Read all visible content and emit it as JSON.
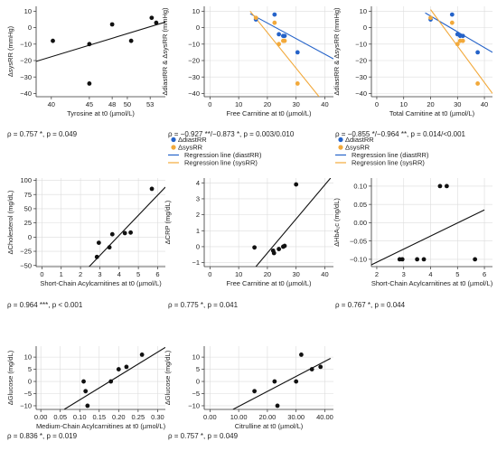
{
  "chart_data": [
    {
      "id": "p1",
      "type": "scatter",
      "xlabel": "Tyrosine at t0 (µmol/L)",
      "ylabel": "ΔsysRR (mmHg)",
      "xticks": [
        "40",
        "45",
        "48",
        "50",
        "53"
      ],
      "xtick_values": [
        40,
        45,
        48,
        50,
        53
      ],
      "yticks": [
        "10",
        "0",
        "−10",
        "−20",
        "−30",
        "−40"
      ],
      "ytick_values": [
        10,
        0,
        -10,
        -20,
        -30,
        -40
      ],
      "xlim": [
        38,
        55
      ],
      "ylim": [
        -42,
        13
      ],
      "xgrid": false,
      "ygrid": false,
      "series": [
        {
          "color": "#111111",
          "x": [
            40.2,
            45,
            45,
            48,
            50.5,
            53.2,
            53.8
          ],
          "y": [
            -8,
            -34,
            -10,
            2,
            -8,
            6,
            3
          ]
        }
      ],
      "lines": [
        {
          "color": "#111111",
          "x": [
            38,
            55
          ],
          "y": [
            -20.5,
            3.4
          ]
        }
      ],
      "legend": [],
      "caption": "ρ = 0.757 *, p = 0.049"
    },
    {
      "id": "p2",
      "type": "scatter",
      "xlabel": "Free Carnitine at t0 (µmol/L)",
      "ylabel": "ΔdiastRR & ΔsysRR (mmHg)",
      "xticks": [
        "0",
        "10",
        "20",
        "30",
        "40"
      ],
      "xtick_values": [
        0,
        10,
        20,
        30,
        40
      ],
      "yticks": [
        "10",
        "0",
        "−10",
        "−20",
        "−30",
        "−40"
      ],
      "ytick_values": [
        10,
        0,
        -10,
        -20,
        -30,
        -40
      ],
      "xlim": [
        -2,
        43
      ],
      "ylim": [
        -42,
        13
      ],
      "xgrid": true,
      "ygrid": true,
      "series": [
        {
          "name": "ΔdiastRR",
          "color": "#2563c9",
          "x": [
            16,
            22.5,
            24,
            25.5,
            26,
            30.5
          ],
          "y": [
            5,
            8,
            -4,
            -5,
            -5,
            -15
          ]
        },
        {
          "name": "ΔsysRR",
          "color": "#f2a93b",
          "x": [
            16,
            22.5,
            24,
            25.5,
            26,
            30.5
          ],
          "y": [
            6,
            3,
            -10,
            -8,
            -8,
            -34
          ]
        }
      ],
      "lines": [
        {
          "name": "Regression line (diastRR)",
          "color": "#2563c9",
          "x": [
            14,
            43
          ],
          "y": [
            8.5,
            -19
          ]
        },
        {
          "name": "Regression line (sysRR)",
          "color": "#f2a93b",
          "x": [
            14,
            38
          ],
          "y": [
            10,
            -42
          ]
        }
      ],
      "legend": [
        {
          "label": "ΔdiastRR",
          "color": "#2563c9",
          "kind": "marker"
        },
        {
          "label": "ΔsysRR",
          "color": "#f2a93b",
          "kind": "marker"
        },
        {
          "label": "Regression line (diastRR)",
          "color": "#2563c9",
          "kind": "line"
        },
        {
          "label": "Regression line (sysRR)",
          "color": "#f2a93b",
          "kind": "line"
        }
      ],
      "caption": "ρ = −0.927 **/−0.873 *, p = 0.003/0.010"
    },
    {
      "id": "p3",
      "type": "scatter",
      "xlabel": "Total Carnitine at t0 (µmol/L)",
      "ylabel": "ΔdiastRR & ΔsysRR (mmHg)",
      "xticks": [
        "0",
        "10",
        "20",
        "30",
        "40"
      ],
      "xtick_values": [
        0,
        10,
        20,
        30,
        40
      ],
      "yticks": [
        "10",
        "0",
        "−10",
        "−20",
        "−30",
        "−40"
      ],
      "ytick_values": [
        10,
        0,
        -10,
        -20,
        -30,
        -40
      ],
      "xlim": [
        -2,
        43
      ],
      "ylim": [
        -42,
        13
      ],
      "xgrid": true,
      "ygrid": true,
      "series": [
        {
          "name": "ΔdiastRR",
          "color": "#2563c9",
          "x": [
            20,
            28,
            30,
            31,
            32,
            37.5
          ],
          "y": [
            5,
            8,
            -4,
            -5,
            -5,
            -15
          ]
        },
        {
          "name": "ΔsysRR",
          "color": "#f2a93b",
          "x": [
            20,
            28,
            30,
            31,
            32,
            37.5
          ],
          "y": [
            6,
            3,
            -10,
            -8,
            -8,
            -34
          ]
        }
      ],
      "lines": [
        {
          "name": "Regression line (diastRR)",
          "color": "#2563c9",
          "x": [
            18,
            43
          ],
          "y": [
            9,
            -15
          ]
        },
        {
          "name": "Regression line (sysRR)",
          "color": "#f2a93b",
          "x": [
            20,
            43
          ],
          "y": [
            11,
            -40
          ]
        }
      ],
      "legend": [
        {
          "label": "ΔdiastRR",
          "color": "#2563c9",
          "kind": "marker"
        },
        {
          "label": "ΔsysRR",
          "color": "#f2a93b",
          "kind": "marker"
        },
        {
          "label": "Regression line (diastRR)",
          "color": "#2563c9",
          "kind": "line"
        },
        {
          "label": "Regression line (sysRR)",
          "color": "#f2a93b",
          "kind": "line"
        }
      ],
      "caption": "ρ = −0.855 */−0.964 **, p = 0.014/<0.001"
    },
    {
      "id": "p4",
      "type": "scatter",
      "xlabel": "Short-Chain Acylcarnitines at t0 (µmol/L)",
      "ylabel": "ΔCholesterol (mg/dL)",
      "xticks": [
        "0",
        "1",
        "2",
        "3",
        "4",
        "5",
        "6"
      ],
      "xtick_values": [
        0,
        1,
        2,
        3,
        4,
        5,
        6
      ],
      "yticks": [
        "100",
        "75",
        "50",
        "25",
        "0",
        "−25",
        "−50"
      ],
      "ytick_values": [
        100,
        75,
        50,
        25,
        0,
        -25,
        -50
      ],
      "xlim": [
        -0.3,
        6.4
      ],
      "ylim": [
        -52,
        104
      ],
      "xgrid": true,
      "ygrid": true,
      "series": [
        {
          "color": "#111111",
          "x": [
            2.85,
            2.95,
            3.5,
            3.65,
            4.3,
            4.6,
            5.7
          ],
          "y": [
            -35,
            -10,
            -18,
            5,
            7,
            8,
            85
          ]
        }
      ],
      "lines": [
        {
          "color": "#111111",
          "x": [
            2.45,
            6.4
          ],
          "y": [
            -52,
            88
          ]
        }
      ],
      "legend": [],
      "caption": "ρ = 0.964 ***, p < 0.001"
    },
    {
      "id": "p5",
      "type": "scatter",
      "xlabel": "Free Carnitine at t0 (µmol/L)",
      "ylabel": "ΔCRP (mg/dL)",
      "xticks": [
        "0",
        "10",
        "20",
        "30",
        "40"
      ],
      "xtick_values": [
        0,
        10,
        20,
        30,
        40
      ],
      "yticks": [
        "4",
        "3",
        "2",
        "1",
        "0",
        "−1"
      ],
      "ytick_values": [
        4,
        3,
        2,
        1,
        0,
        -1
      ],
      "xlim": [
        -2,
        43
      ],
      "ylim": [
        -1.25,
        4.3
      ],
      "xgrid": true,
      "ygrid": true,
      "series": [
        {
          "color": "#111111",
          "x": [
            15.5,
            22,
            22.3,
            24,
            25.5,
            26,
            30
          ],
          "y": [
            -0.05,
            -0.25,
            -0.4,
            -0.15,
            0,
            0.05,
            3.9
          ]
        }
      ],
      "lines": [
        {
          "color": "#111111",
          "x": [
            16,
            42
          ],
          "y": [
            -1.25,
            4.3
          ]
        }
      ],
      "legend": [],
      "caption": "ρ = 0.775 *, p = 0.041"
    },
    {
      "id": "p6",
      "type": "scatter",
      "xlabel": "Short-Chain Acylcarnitines at t0 (µmol/L)",
      "ylabel": "ΔHbA₁c (mg/dL)",
      "xticks": [
        "2",
        "3",
        "4",
        "5",
        "6"
      ],
      "xtick_values": [
        2,
        3,
        4,
        5,
        6
      ],
      "yticks": [
        "0.10",
        "0.05",
        "0.00",
        "−0.05",
        "−0.10"
      ],
      "ytick_values": [
        0.1,
        0.05,
        0,
        -0.05,
        -0.1
      ],
      "xlim": [
        1.8,
        6.3
      ],
      "ylim": [
        -0.12,
        0.122
      ],
      "xgrid": true,
      "ygrid": true,
      "series": [
        {
          "color": "#111111",
          "x": [
            2.85,
            2.95,
            3.5,
            3.75,
            4.35,
            4.6,
            5.65
          ],
          "y": [
            -0.1,
            -0.1,
            -0.1,
            -0.1,
            0.1,
            0.1,
            -0.1
          ]
        }
      ],
      "lines": [
        {
          "color": "#111111",
          "x": [
            1.8,
            6
          ],
          "y": [
            -0.115,
            0.035
          ]
        }
      ],
      "legend": [],
      "caption": "ρ = 0.767 *, p = 0.044"
    },
    {
      "id": "p7",
      "type": "scatter",
      "xlabel": "Medium-Chain Acylcarnitines at t0 (µmol/L)",
      "ylabel": "ΔGlucose (mg/dL)",
      "xticks": [
        "0.00",
        "0.05",
        "0.10",
        "0.15",
        "0.20",
        "0.25",
        "0.30"
      ],
      "xtick_values": [
        0,
        0.05,
        0.1,
        0.15,
        0.2,
        0.25,
        0.3
      ],
      "yticks": [
        "10",
        "5",
        "0",
        "−5",
        "−10"
      ],
      "ytick_values": [
        10,
        5,
        0,
        -5,
        -10
      ],
      "xlim": [
        -0.012,
        0.32
      ],
      "ylim": [
        -11.5,
        14.5
      ],
      "xgrid": true,
      "ygrid": true,
      "series": [
        {
          "color": "#111111",
          "x": [
            0.11,
            0.115,
            0.12,
            0.18,
            0.2,
            0.22,
            0.26
          ],
          "y": [
            0,
            -4,
            -10,
            0,
            5,
            6,
            11
          ]
        }
      ],
      "lines": [
        {
          "color": "#111111",
          "x": [
            0.06,
            0.32
          ],
          "y": [
            -11.5,
            14
          ]
        }
      ],
      "legend": [],
      "caption": "ρ = 0.836 *, p = 0.019"
    },
    {
      "id": "p8",
      "type": "scatter",
      "xlabel": "Citrulline at t0 (µmol/L)",
      "ylabel": "ΔGlucose (mg/dL)",
      "xticks": [
        "0.00",
        "10.00",
        "20.00",
        "30.00",
        "40.00"
      ],
      "xtick_values": [
        0,
        10,
        20,
        30,
        40
      ],
      "yticks": [
        "10",
        "5",
        "0",
        "−5",
        "−10"
      ],
      "ytick_values": [
        10,
        5,
        0,
        -5,
        -10
      ],
      "xlim": [
        -2,
        43
      ],
      "ylim": [
        -11.5,
        14.5
      ],
      "xgrid": true,
      "ygrid": true,
      "series": [
        {
          "color": "#111111",
          "x": [
            15.5,
            22.5,
            23.5,
            30,
            31.8,
            35.5,
            38.5
          ],
          "y": [
            -4,
            0,
            -10,
            0,
            11,
            5,
            6
          ]
        }
      ],
      "lines": [
        {
          "color": "#111111",
          "x": [
            8,
            42
          ],
          "y": [
            -11.5,
            9.5
          ]
        }
      ],
      "legend": [],
      "caption": "ρ = 0.757 *, p = 0.049"
    }
  ]
}
